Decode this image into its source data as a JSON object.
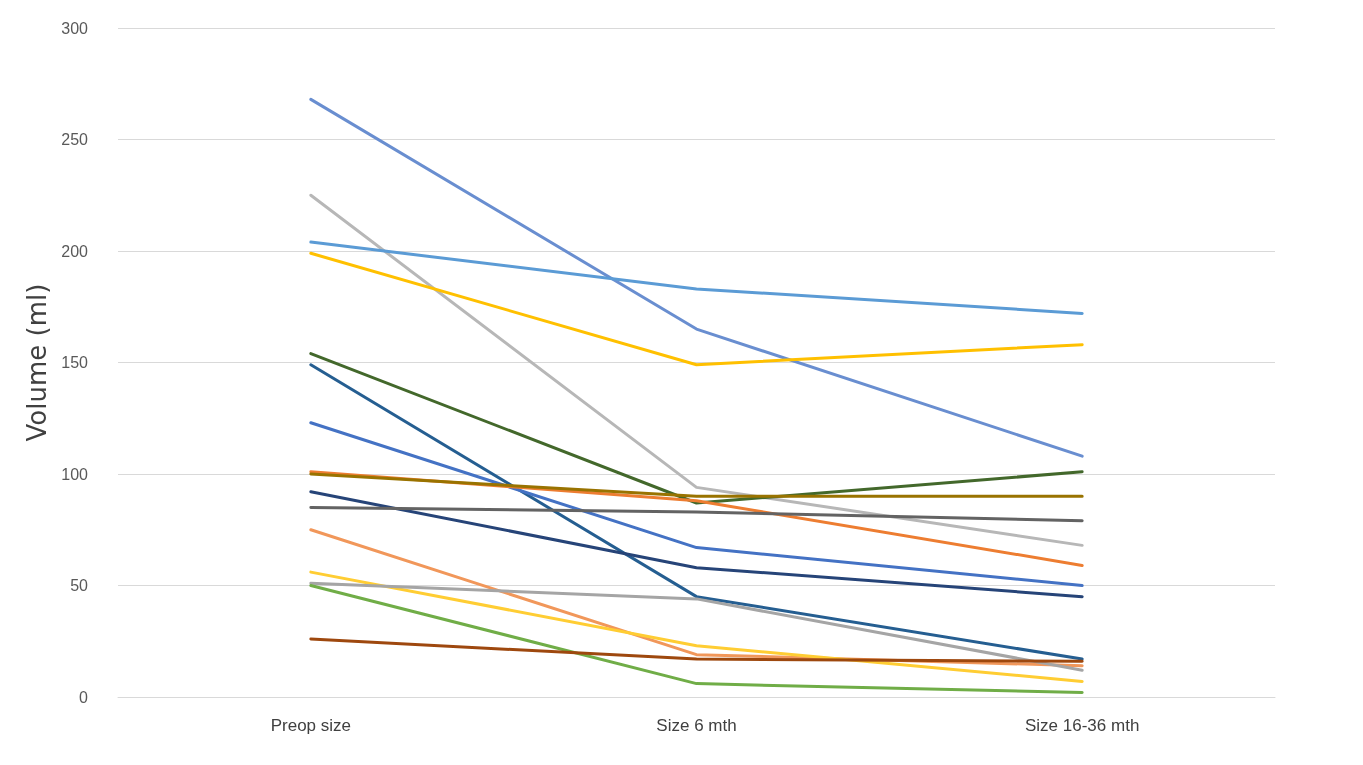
{
  "chart_data": {
    "type": "line",
    "ylabel": "Volume (ml)",
    "categories": [
      "Preop size",
      "Size 6 mth",
      "Size 16-36 mth"
    ],
    "ylim": [
      0,
      300
    ],
    "yticks": [
      0,
      50,
      100,
      150,
      200,
      250,
      300
    ],
    "grid": "y",
    "marker": "none",
    "line_style": "solid",
    "series": [
      {
        "color": "#698ed0",
        "values": [
          268,
          165,
          108
        ]
      },
      {
        "color": "#b7b7b7",
        "values": [
          225,
          94,
          68
        ]
      },
      {
        "color": "#5b9bd5",
        "values": [
          204,
          183,
          172
        ]
      },
      {
        "color": "#ffc000",
        "values": [
          199,
          149,
          158
        ]
      },
      {
        "color": "#43682b",
        "values": [
          154,
          87,
          101
        ]
      },
      {
        "color": "#255e91",
        "values": [
          149,
          45,
          17
        ]
      },
      {
        "color": "#4472c4",
        "values": [
          123,
          67,
          50
        ]
      },
      {
        "color": "#ed7d31",
        "values": [
          101,
          88,
          59
        ]
      },
      {
        "color": "#997300",
        "values": [
          100,
          90,
          90
        ]
      },
      {
        "color": "#264478",
        "values": [
          92,
          58,
          45
        ]
      },
      {
        "color": "#636363",
        "values": [
          85,
          83,
          79
        ]
      },
      {
        "color": "#f1975a",
        "values": [
          75,
          19,
          14
        ]
      },
      {
        "color": "#ffcd33",
        "values": [
          56,
          23,
          7
        ]
      },
      {
        "color": "#a5a5a5",
        "values": [
          51,
          44,
          12
        ]
      },
      {
        "color": "#70ad47",
        "values": [
          50,
          6,
          2
        ]
      },
      {
        "color": "#9e480e",
        "values": [
          26,
          17,
          16
        ]
      }
    ]
  }
}
